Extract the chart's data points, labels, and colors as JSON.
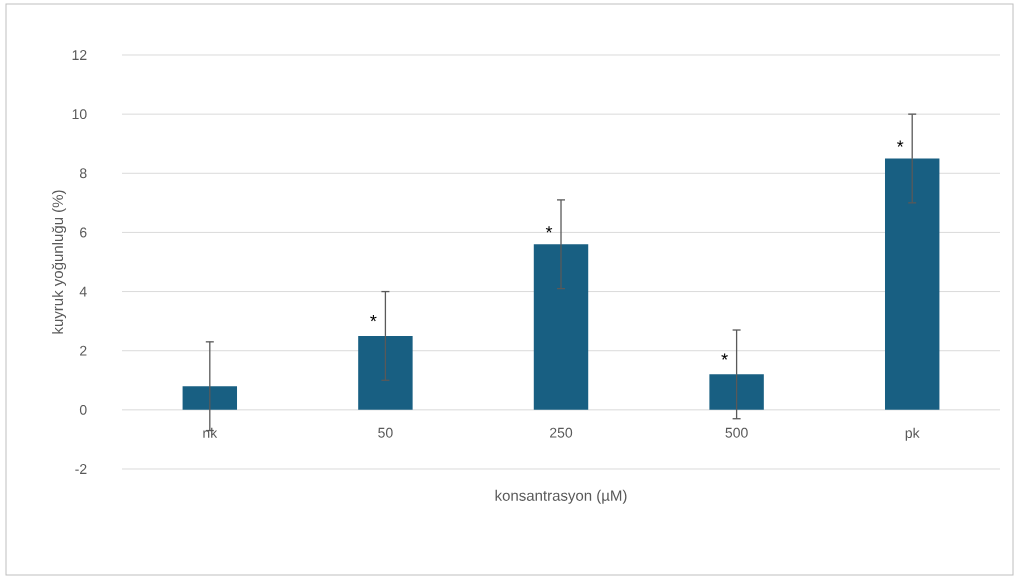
{
  "chart_data": {
    "type": "bar",
    "xlabel": "konsantrasyon (µM)",
    "ylabel": "kuyruk yoğunluğu (%)",
    "categories": [
      "nk",
      "50",
      "250",
      "500",
      "pk"
    ],
    "values": [
      0.8,
      2.5,
      5.6,
      1.2,
      8.5
    ],
    "errors": [
      1.5,
      1.5,
      1.5,
      1.5,
      1.5
    ],
    "color": "#185f82",
    "ylim": [
      -2,
      12
    ],
    "yticks": [
      -2,
      0,
      2,
      4,
      6,
      8,
      10,
      12
    ],
    "grid": "y",
    "annotations": [
      {
        "text": "*",
        "x": "50",
        "y": 3.0
      },
      {
        "text": "*",
        "x": "250",
        "y": 6.0
      },
      {
        "text": "*",
        "x": "500",
        "y": 1.7
      },
      {
        "text": "*",
        "x": "pk",
        "y": 8.9
      }
    ]
  }
}
